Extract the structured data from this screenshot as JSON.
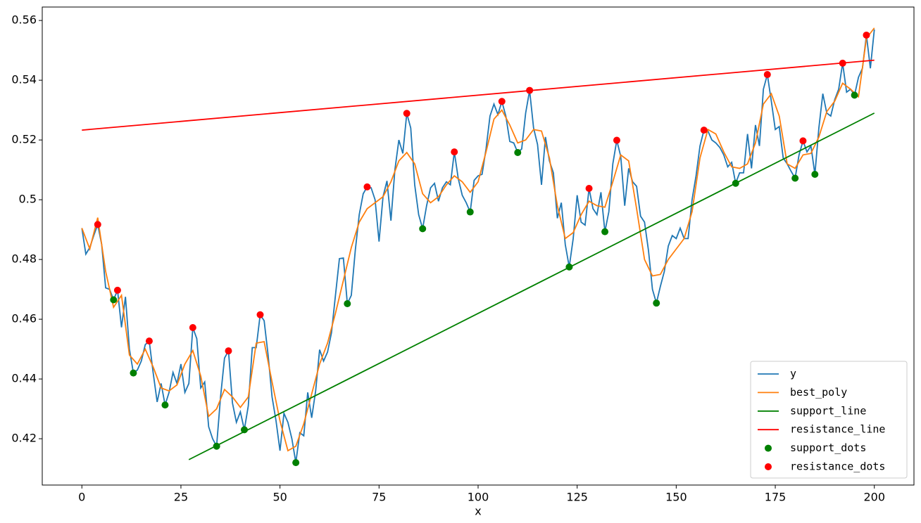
{
  "chart_data": {
    "type": "line",
    "xlabel": "x",
    "xlim": [
      -10,
      210
    ],
    "ylim": [
      0.4045,
      0.5645
    ],
    "xticks": [
      0,
      25,
      50,
      75,
      100,
      125,
      150,
      175,
      200
    ],
    "yticks": [
      0.42,
      0.44,
      0.46,
      0.48,
      0.5,
      0.52,
      0.54,
      0.56
    ],
    "legend": "lower right",
    "series": [
      {
        "name": "y",
        "color": "#1f77b4",
        "mode": "line",
        "x": [
          0,
          1,
          2,
          3,
          4,
          5,
          6,
          7,
          8,
          9,
          10,
          11,
          12,
          13,
          14,
          15,
          16,
          17,
          18,
          19,
          20,
          21,
          22,
          23,
          24,
          25,
          26,
          27,
          28,
          29,
          30,
          31,
          32,
          33,
          34,
          35,
          36,
          37,
          38,
          39,
          40,
          41,
          42,
          43,
          44,
          45,
          46,
          47,
          48,
          49,
          50,
          51,
          52,
          53,
          54,
          55,
          56,
          57,
          58,
          59,
          60,
          61,
          62,
          63,
          64,
          65,
          66,
          67,
          68,
          69,
          70,
          71,
          72,
          73,
          74,
          75,
          76,
          77,
          78,
          79,
          80,
          81,
          82,
          83,
          84,
          85,
          86,
          87,
          88,
          89,
          90,
          91,
          92,
          93,
          94,
          95,
          96,
          97,
          98,
          99,
          100,
          101,
          102,
          103,
          104,
          105,
          106,
          107,
          108,
          109,
          110,
          111,
          112,
          113,
          114,
          115,
          116,
          117,
          118,
          119,
          120,
          121,
          122,
          123,
          124,
          125,
          126,
          127,
          128,
          129,
          130,
          131,
          132,
          133,
          134,
          135,
          136,
          137,
          138,
          139,
          140,
          141,
          142,
          143,
          144,
          145,
          146,
          147,
          148,
          149,
          150,
          151,
          152,
          153,
          154,
          155,
          156,
          157,
          158,
          159,
          160,
          161,
          162,
          163,
          164,
          165,
          166,
          167,
          168,
          169,
          170,
          171,
          172,
          173,
          174,
          175,
          176,
          177,
          178,
          179,
          180,
          181,
          182,
          183,
          184,
          185,
          186,
          187,
          188,
          189,
          190,
          191,
          192,
          193,
          194,
          195,
          196,
          197,
          198,
          199,
          200
        ],
        "values": [
          0.4905,
          0.4818,
          0.484,
          0.488,
          0.4917,
          0.485,
          0.4705,
          0.47,
          0.4665,
          0.4697,
          0.4573,
          0.4675,
          0.45,
          0.442,
          0.443,
          0.446,
          0.4515,
          0.4527,
          0.442,
          0.4323,
          0.4385,
          0.4313,
          0.4355,
          0.4422,
          0.4385,
          0.445,
          0.4355,
          0.4385,
          0.4572,
          0.4535,
          0.437,
          0.439,
          0.424,
          0.42,
          0.4175,
          0.434,
          0.447,
          0.4494,
          0.432,
          0.4255,
          0.429,
          0.423,
          0.431,
          0.4505,
          0.4505,
          0.4615,
          0.4595,
          0.448,
          0.434,
          0.426,
          0.416,
          0.4285,
          0.4255,
          0.42,
          0.412,
          0.422,
          0.421,
          0.4355,
          0.427,
          0.436,
          0.4498,
          0.446,
          0.449,
          0.4555,
          0.468,
          0.4803,
          0.4805,
          0.4652,
          0.468,
          0.483,
          0.495,
          0.502,
          0.5043,
          0.504,
          0.5,
          0.486,
          0.501,
          0.5063,
          0.493,
          0.51,
          0.52,
          0.5155,
          0.5289,
          0.524,
          0.505,
          0.495,
          0.4903,
          0.498,
          0.504,
          0.5055,
          0.4995,
          0.504,
          0.506,
          0.505,
          0.516,
          0.507,
          0.5015,
          0.499,
          0.4959,
          0.5065,
          0.508,
          0.5085,
          0.517,
          0.528,
          0.532,
          0.5285,
          0.5329,
          0.528,
          0.5195,
          0.519,
          0.5158,
          0.517,
          0.529,
          0.5366,
          0.524,
          0.5185,
          0.505,
          0.521,
          0.513,
          0.509,
          0.4938,
          0.499,
          0.485,
          0.4775,
          0.487,
          0.5015,
          0.4925,
          0.4915,
          0.5038,
          0.497,
          0.495,
          0.5025,
          0.4893,
          0.496,
          0.512,
          0.5199,
          0.5145,
          0.498,
          0.5105,
          0.506,
          0.5045,
          0.4945,
          0.4925,
          0.483,
          0.47,
          0.4654,
          0.471,
          0.476,
          0.4845,
          0.488,
          0.487,
          0.4905,
          0.487,
          0.487,
          0.5,
          0.508,
          0.518,
          0.5233,
          0.523,
          0.52,
          0.519,
          0.5175,
          0.515,
          0.511,
          0.5125,
          0.5055,
          0.509,
          0.509,
          0.522,
          0.5105,
          0.525,
          0.518,
          0.537,
          0.5419,
          0.533,
          0.5235,
          0.5245,
          0.514,
          0.512,
          0.5095,
          0.5072,
          0.515,
          0.5197,
          0.516,
          0.518,
          0.5085,
          0.524,
          0.5355,
          0.529,
          0.528,
          0.5335,
          0.537,
          0.5457,
          0.536,
          0.537,
          0.535,
          0.541,
          0.544,
          0.5551,
          0.544,
          0.557
        ]
      },
      {
        "name": "best_poly",
        "color": "#ff7f0e",
        "mode": "line",
        "x": [
          0,
          2,
          4,
          6,
          8,
          10,
          12,
          14,
          16,
          18,
          20,
          22,
          24,
          26,
          28,
          30,
          32,
          34,
          36,
          38,
          40,
          42,
          44,
          46,
          48,
          50,
          52,
          54,
          56,
          58,
          60,
          62,
          64,
          66,
          68,
          70,
          72,
          74,
          76,
          78,
          80,
          82,
          84,
          86,
          88,
          90,
          92,
          94,
          96,
          98,
          100,
          102,
          104,
          106,
          108,
          110,
          112,
          114,
          116,
          118,
          120,
          122,
          124,
          126,
          128,
          130,
          132,
          134,
          136,
          138,
          140,
          142,
          144,
          146,
          148,
          150,
          152,
          154,
          156,
          158,
          160,
          162,
          164,
          166,
          168,
          170,
          172,
          174,
          176,
          178,
          180,
          182,
          184,
          186,
          188,
          190,
          192,
          194,
          196,
          198,
          200
        ],
        "values": [
          0.4905,
          0.4835,
          0.494,
          0.476,
          0.464,
          0.468,
          0.448,
          0.445,
          0.45,
          0.444,
          0.437,
          0.436,
          0.438,
          0.445,
          0.4495,
          0.441,
          0.4275,
          0.43,
          0.4365,
          0.434,
          0.4305,
          0.434,
          0.452,
          0.4525,
          0.439,
          0.426,
          0.416,
          0.4175,
          0.425,
          0.435,
          0.445,
          0.452,
          0.462,
          0.473,
          0.484,
          0.4925,
          0.497,
          0.499,
          0.501,
          0.506,
          0.513,
          0.5158,
          0.512,
          0.502,
          0.499,
          0.501,
          0.505,
          0.508,
          0.506,
          0.5025,
          0.506,
          0.516,
          0.527,
          0.53,
          0.525,
          0.519,
          0.52,
          0.5235,
          0.523,
          0.514,
          0.498,
          0.487,
          0.489,
          0.495,
          0.4995,
          0.498,
          0.4975,
          0.506,
          0.515,
          0.513,
          0.497,
          0.48,
          0.4745,
          0.475,
          0.48,
          0.4835,
          0.487,
          0.496,
          0.514,
          0.5235,
          0.522,
          0.516,
          0.511,
          0.5105,
          0.512,
          0.519,
          0.532,
          0.5355,
          0.528,
          0.512,
          0.5105,
          0.515,
          0.5155,
          0.521,
          0.5295,
          0.533,
          0.539,
          0.537,
          0.5345,
          0.554,
          0.5575
        ]
      },
      {
        "name": "support_line",
        "color": "#008000",
        "mode": "line",
        "x": [
          27,
          200
        ],
        "values": [
          0.413,
          0.529
        ]
      },
      {
        "name": "resistance_line",
        "color": "#ff0000",
        "mode": "line",
        "x": [
          0,
          200
        ],
        "values": [
          0.5233,
          0.5467
        ]
      },
      {
        "name": "support_dots",
        "color": "#008000",
        "mode": "markers",
        "x": [
          8,
          13,
          21,
          34,
          41,
          54,
          67,
          86,
          98,
          110,
          123,
          132,
          145,
          165,
          180,
          185,
          195
        ],
        "values": [
          0.4665,
          0.442,
          0.4313,
          0.4175,
          0.423,
          0.412,
          0.4652,
          0.4903,
          0.4959,
          0.5158,
          0.4775,
          0.4893,
          0.4654,
          0.5055,
          0.5072,
          0.5085,
          0.535
        ]
      },
      {
        "name": "resistance_dots",
        "color": "#ff0000",
        "mode": "markers",
        "x": [
          4,
          9,
          17,
          28,
          37,
          45,
          72,
          82,
          94,
          106,
          113,
          128,
          135,
          157,
          173,
          182,
          192,
          198
        ],
        "values": [
          0.4917,
          0.4697,
          0.4527,
          0.4572,
          0.4494,
          0.4615,
          0.5043,
          0.5289,
          0.516,
          0.5329,
          0.5366,
          0.5038,
          0.5199,
          0.5233,
          0.5419,
          0.5197,
          0.5457,
          0.5551
        ]
      }
    ]
  }
}
